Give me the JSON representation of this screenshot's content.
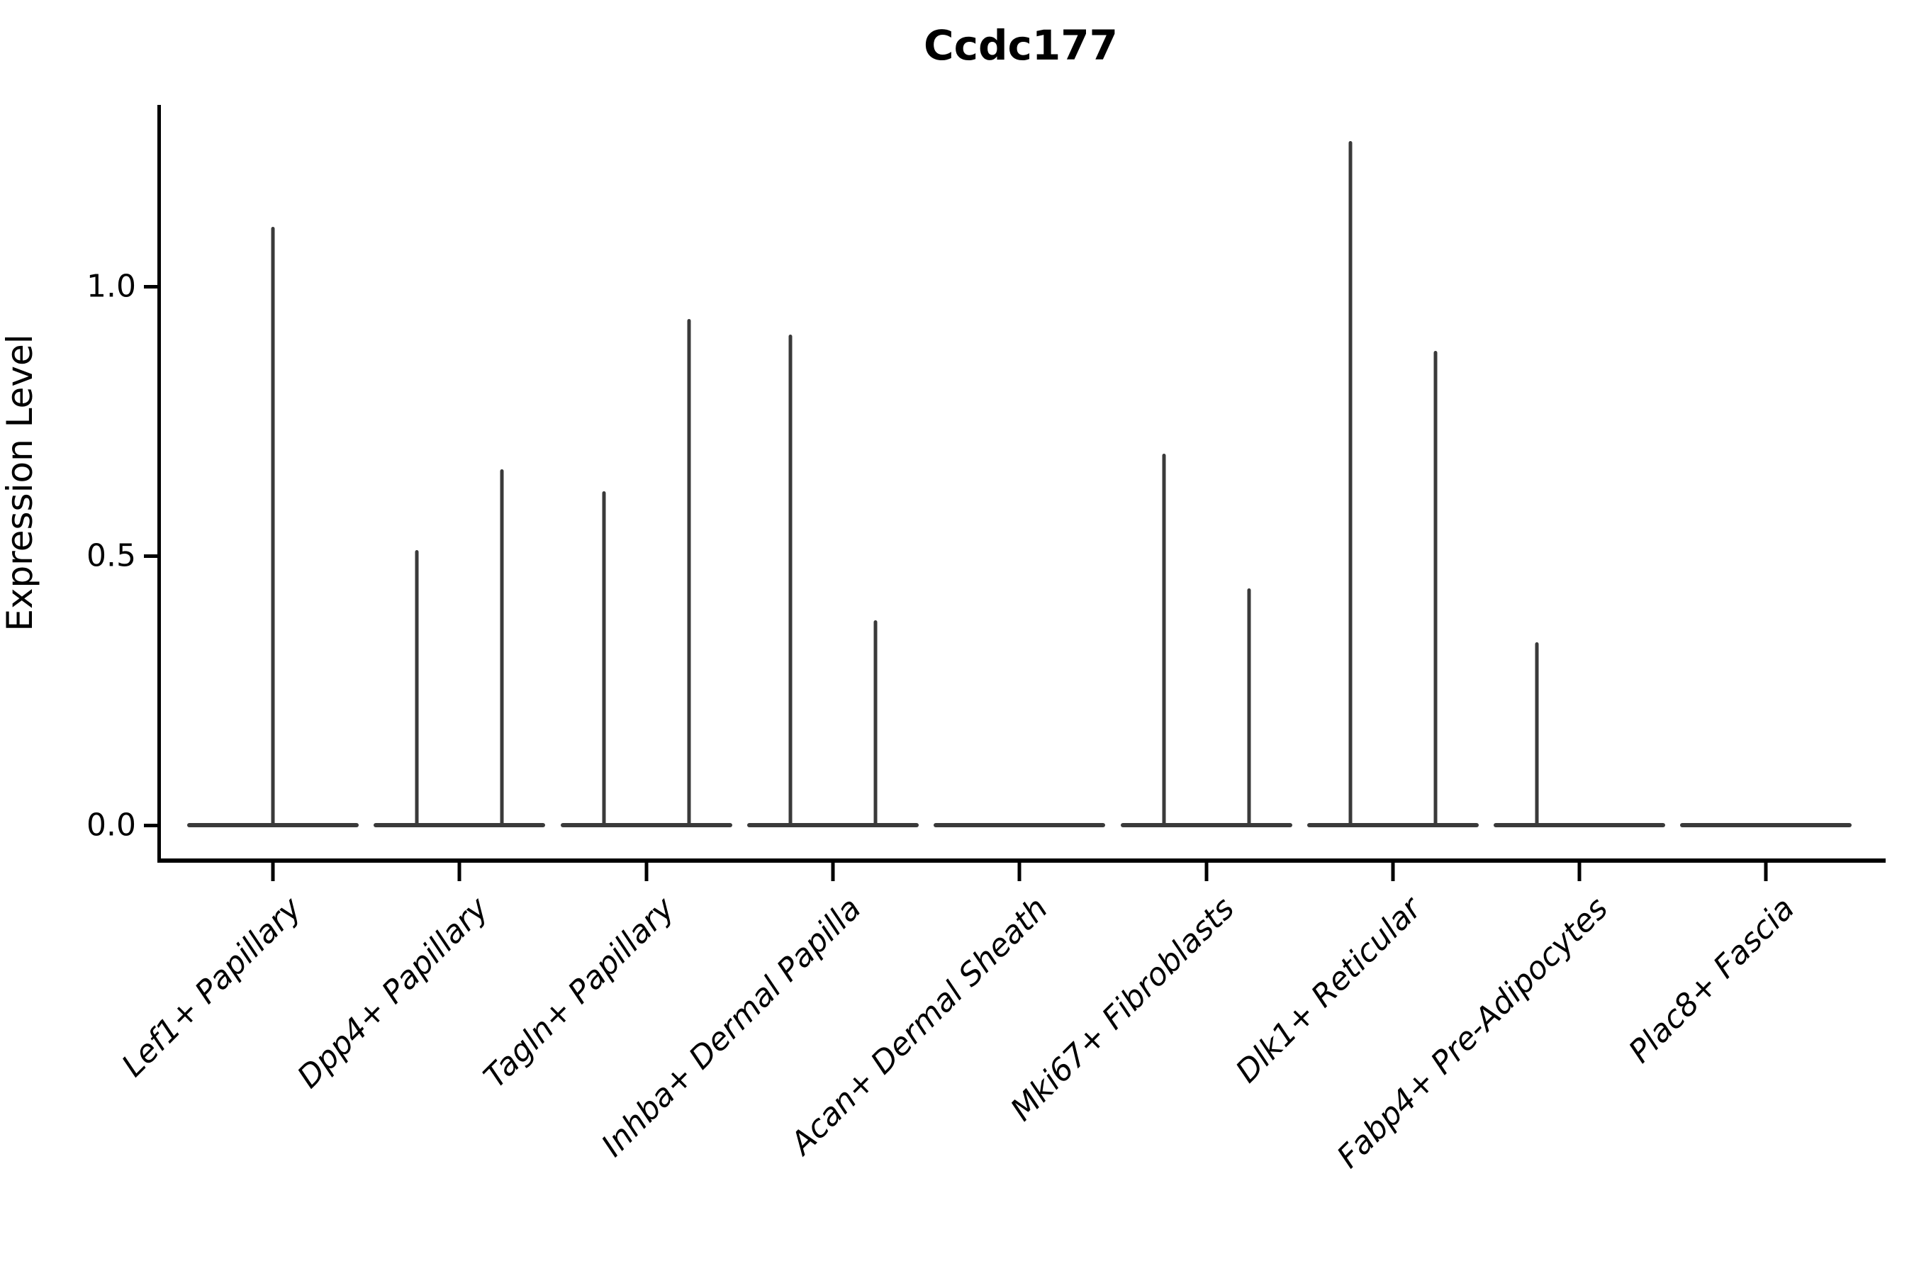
{
  "chart_data": {
    "type": "violin",
    "title": "Ccdc177",
    "xlabel": "",
    "ylabel": "Expression Level",
    "ylim": [
      -0.06,
      1.33
    ],
    "y_ticks": [
      {
        "value": 0.0,
        "label": "0.0"
      },
      {
        "value": 0.5,
        "label": "0.5"
      },
      {
        "value": 1.0,
        "label": "1.0"
      }
    ],
    "grid": false,
    "legend": "none",
    "violin_color": "#3a3a3a",
    "axis_color": "#000000",
    "note": "Each category shows a flat violin base at expression 0 with thin density spikes reaching the maximum expression value; 'position' is the spike placement within the category (dodged left/right violin or single centered violin).",
    "categories": [
      {
        "label": "Lef1+ Papillary",
        "violins": [
          {
            "position": "center",
            "max": 1.11
          }
        ]
      },
      {
        "label": "Dpp4+ Papillary",
        "violins": [
          {
            "position": "left",
            "max": 0.51
          },
          {
            "position": "right",
            "max": 0.66
          }
        ]
      },
      {
        "label": "Tagln+ Papillary",
        "violins": [
          {
            "position": "left",
            "max": 0.62
          },
          {
            "position": "right",
            "max": 0.94
          }
        ]
      },
      {
        "label": "Inhba+ Dermal Papilla",
        "violins": [
          {
            "position": "left",
            "max": 0.91
          },
          {
            "position": "right",
            "max": 0.38
          }
        ]
      },
      {
        "label": "Acan+ Dermal Sheath",
        "violins": []
      },
      {
        "label": "Mki67+ Fibroblasts",
        "violins": [
          {
            "position": "left",
            "max": 0.69
          },
          {
            "position": "right",
            "max": 0.44
          }
        ]
      },
      {
        "label": "Dlk1+ Reticular",
        "violins": [
          {
            "position": "left",
            "max": 1.27
          },
          {
            "position": "right",
            "max": 0.88
          }
        ]
      },
      {
        "label": "Fabp4+ Pre-Adipocytes",
        "violins": [
          {
            "position": "left",
            "max": 0.34
          }
        ]
      },
      {
        "label": "Plac8+ Fascia",
        "violins": []
      }
    ]
  }
}
